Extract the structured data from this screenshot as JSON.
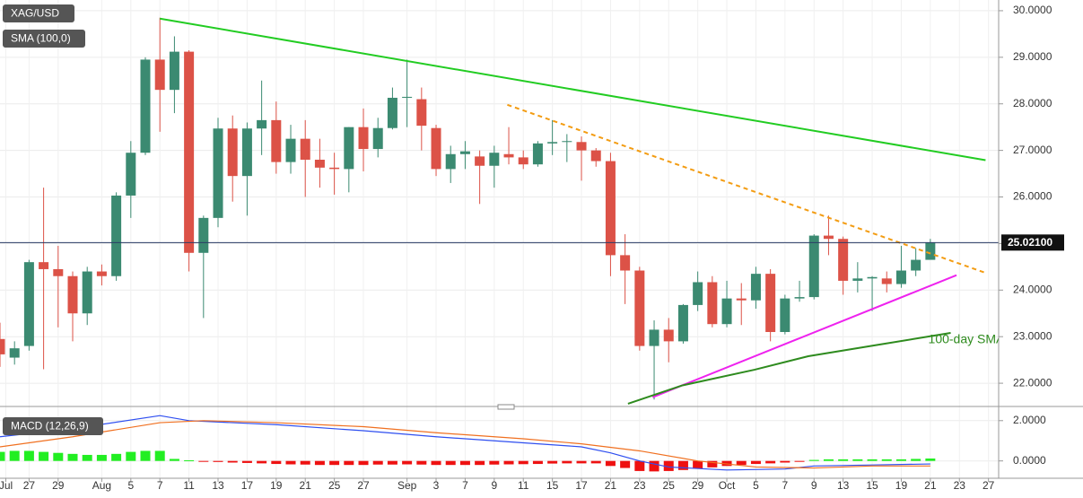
{
  "chart_data": [
    {
      "type": "candlestick",
      "title": "XAG/USD",
      "indicator_label": "SMA (100,0)",
      "up_color": "#3b8a71",
      "down_color": "#dc5247",
      "open": [
        22.95,
        22.55,
        22.8,
        24.6,
        24.45,
        24.3,
        23.5,
        24.4,
        24.3,
        26.03,
        26.95,
        28.95,
        28.3,
        29.12,
        24.8,
        25.55,
        27.47,
        26.45,
        27.47,
        27.65,
        26.75,
        27.25,
        26.8,
        26.63,
        26.6,
        27.5,
        27.03,
        27.48,
        28.13,
        28.1,
        27.48,
        26.6,
        26.92,
        26.87,
        26.67,
        26.92,
        26.85,
        26.7,
        27.15,
        27.18,
        27.18,
        27.0,
        26.77,
        24.75,
        24.42,
        22.8,
        23.15,
        22.9,
        23.68,
        24.17,
        23.27,
        23.82,
        23.78,
        24.35,
        23.1,
        23.82,
        23.85,
        25.17,
        25.1,
        24.2,
        24.25,
        24.25,
        24.13,
        24.42,
        24.65
      ],
      "high": [
        23.3,
        22.9,
        24.65,
        26.2,
        24.95,
        24.4,
        24.5,
        24.55,
        26.1,
        27.2,
        29.0,
        29.85,
        29.45,
        29.15,
        25.6,
        27.7,
        27.75,
        27.6,
        28.5,
        28.05,
        27.55,
        27.65,
        27.25,
        26.95,
        27.5,
        27.9,
        27.7,
        28.35,
        28.95,
        28.35,
        27.55,
        27.1,
        27.2,
        27.0,
        27.1,
        27.5,
        27.0,
        27.2,
        27.65,
        27.35,
        27.3,
        27.05,
        26.95,
        25.2,
        24.5,
        23.35,
        23.4,
        23.7,
        24.4,
        24.3,
        24.2,
        24.15,
        24.5,
        24.45,
        23.9,
        24.2,
        25.2,
        25.6,
        25.15,
        24.6,
        24.3,
        24.4,
        24.95,
        24.9,
        25.1
      ],
      "low": [
        22.35,
        22.4,
        22.7,
        22.3,
        23.2,
        22.9,
        23.25,
        24.1,
        24.2,
        25.55,
        26.9,
        27.4,
        27.8,
        24.4,
        23.4,
        25.35,
        25.9,
        25.6,
        26.9,
        26.5,
        26.5,
        26.0,
        26.2,
        26.05,
        26.1,
        26.55,
        26.85,
        27.45,
        27.5,
        27.0,
        26.45,
        26.3,
        26.6,
        25.85,
        26.2,
        26.7,
        26.6,
        26.65,
        26.9,
        26.75,
        26.35,
        26.65,
        24.3,
        23.7,
        22.7,
        21.65,
        22.45,
        22.85,
        23.55,
        23.2,
        23.2,
        23.25,
        23.6,
        22.9,
        23.05,
        23.75,
        23.8,
        24.75,
        23.9,
        23.95,
        23.55,
        23.95,
        24.05,
        24.3,
        24.7
      ],
      "close": [
        22.62,
        22.75,
        24.6,
        24.45,
        24.3,
        23.5,
        24.4,
        24.3,
        26.03,
        26.95,
        28.95,
        28.3,
        29.12,
        24.8,
        25.55,
        27.47,
        26.45,
        27.47,
        27.65,
        26.75,
        27.25,
        26.8,
        26.63,
        26.6,
        27.5,
        27.03,
        27.48,
        28.13,
        28.15,
        27.53,
        26.6,
        26.92,
        26.98,
        26.67,
        26.95,
        26.85,
        26.7,
        27.15,
        27.18,
        27.2,
        27.0,
        26.77,
        24.75,
        24.42,
        22.8,
        23.15,
        22.9,
        23.68,
        24.17,
        23.27,
        23.82,
        23.78,
        24.35,
        23.1,
        23.82,
        23.85,
        25.17,
        25.1,
        24.2,
        24.25,
        24.28,
        24.13,
        24.42,
        24.65,
        25.02
      ],
      "last_price": {
        "value": 25.021,
        "label": "25.02100"
      },
      "ylim": [
        21.52,
        30.23
      ],
      "yticks": [
        {
          "value": 22,
          "label": "22.0000"
        },
        {
          "value": 23,
          "label": "23.0000"
        },
        {
          "value": 24,
          "label": "24.0000"
        },
        {
          "value": 25,
          "label": "25.0000"
        },
        {
          "value": 26,
          "label": "26.0000"
        },
        {
          "value": 27,
          "label": "27.0000"
        },
        {
          "value": 28,
          "label": "28.0000"
        },
        {
          "value": 29,
          "label": "29.0000"
        },
        {
          "value": 30,
          "label": "30.0000"
        }
      ],
      "xlim": [
        0,
        68.7
      ],
      "xticks": [
        {
          "value": 0.4,
          "label": "Jul"
        },
        {
          "value": 2,
          "label": "27"
        },
        {
          "value": 4,
          "label": "29"
        },
        {
          "value": 7,
          "label": "Aug"
        },
        {
          "value": 9,
          "label": "5"
        },
        {
          "value": 11,
          "label": "7"
        },
        {
          "value": 13,
          "label": "11"
        },
        {
          "value": 15,
          "label": "13"
        },
        {
          "value": 17,
          "label": "17"
        },
        {
          "value": 19,
          "label": "19"
        },
        {
          "value": 21,
          "label": "21"
        },
        {
          "value": 23,
          "label": "25"
        },
        {
          "value": 25,
          "label": "27"
        },
        {
          "value": 28,
          "label": "Sep"
        },
        {
          "value": 30,
          "label": "3"
        },
        {
          "value": 32,
          "label": "7"
        },
        {
          "value": 34,
          "label": "9"
        },
        {
          "value": 36,
          "label": "11"
        },
        {
          "value": 38,
          "label": "15"
        },
        {
          "value": 40,
          "label": "17"
        },
        {
          "value": 42,
          "label": "21"
        },
        {
          "value": 44,
          "label": "23"
        },
        {
          "value": 46,
          "label": "25"
        },
        {
          "value": 48,
          "label": "29"
        },
        {
          "value": 50,
          "label": "Oct"
        },
        {
          "value": 52,
          "label": "5"
        },
        {
          "value": 54,
          "label": "7"
        },
        {
          "value": 56,
          "label": "9"
        },
        {
          "value": 58,
          "label": "13"
        },
        {
          "value": 60,
          "label": "15"
        },
        {
          "value": 62,
          "label": "19"
        },
        {
          "value": 64,
          "label": "21"
        },
        {
          "value": 66,
          "label": "23"
        },
        {
          "value": 68,
          "label": "27"
        }
      ],
      "trendlines": [
        {
          "color": "#22cc22",
          "dashed": false,
          "x": [
            11,
            67.8
          ],
          "y": [
            29.83,
            26.79
          ]
        },
        {
          "color": "#f39c12",
          "dashed": true,
          "x": [
            34.9,
            67.8
          ],
          "y": [
            27.98,
            24.37
          ]
        },
        {
          "color": "#ee22ee",
          "dashed": false,
          "x": [
            44.9,
            65.8
          ],
          "y": [
            21.7,
            24.32
          ]
        }
      ],
      "sma": {
        "name": "100-day SMA",
        "color": "#2e8b1e",
        "x": [
          43.2,
          46.9,
          51.9,
          55.6,
          60.5,
          65.4
        ],
        "y": [
          21.56,
          21.95,
          22.29,
          22.58,
          22.83,
          23.08
        ]
      }
    },
    {
      "type": "macd",
      "title": "MACD (12,26,9)",
      "hist_up_color": "#22ee22",
      "hist_down_color": "#ee1111",
      "histogram": [
        0.45,
        0.5,
        0.5,
        0.45,
        0.4,
        0.35,
        0.3,
        0.3,
        0.35,
        0.45,
        0.5,
        0.5,
        0.1,
        0.03,
        -0.02,
        -0.05,
        -0.08,
        -0.1,
        -0.12,
        -0.15,
        -0.17,
        -0.18,
        -0.2,
        -0.2,
        -0.2,
        -0.2,
        -0.18,
        -0.18,
        -0.17,
        -0.18,
        -0.2,
        -0.2,
        -0.2,
        -0.2,
        -0.18,
        -0.17,
        -0.16,
        -0.15,
        -0.13,
        -0.12,
        -0.12,
        -0.12,
        -0.25,
        -0.35,
        -0.5,
        -0.52,
        -0.5,
        -0.45,
        -0.38,
        -0.32,
        -0.25,
        -0.2,
        -0.15,
        -0.12,
        -0.08,
        -0.04,
        0.05,
        0.08,
        0.08,
        0.08,
        0.08,
        0.08,
        0.08,
        0.1,
        0.12
      ],
      "series": [
        {
          "color": "#2f4ff0",
          "x": [
            0,
            5,
            11,
            13,
            19,
            25,
            30,
            36,
            40,
            42,
            44,
            46,
            50,
            54,
            56,
            60,
            64
          ],
          "values": [
            1.2,
            1.6,
            2.25,
            2.0,
            1.8,
            1.5,
            1.2,
            0.9,
            0.7,
            0.4,
            0.0,
            -0.3,
            -0.45,
            -0.4,
            -0.25,
            -0.2,
            -0.15
          ]
        },
        {
          "color": "#f07020",
          "x": [
            0,
            5,
            11,
            14,
            19,
            25,
            30,
            36,
            40,
            44,
            48,
            52,
            56,
            60,
            64
          ],
          "values": [
            0.7,
            1.2,
            1.9,
            2.0,
            1.9,
            1.7,
            1.4,
            1.1,
            0.85,
            0.5,
            0.0,
            -0.3,
            -0.35,
            -0.25,
            -0.25
          ]
        }
      ],
      "ylim": [
        -0.86,
        2.57
      ],
      "yticks": [
        {
          "value": 0,
          "label": "0.0000"
        },
        {
          "value": 2,
          "label": "2.0000"
        }
      ]
    }
  ]
}
